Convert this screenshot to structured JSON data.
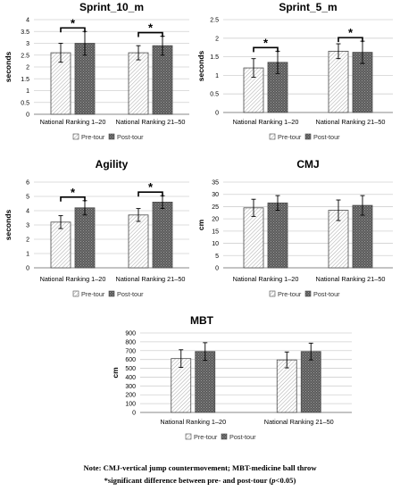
{
  "chart_data": [
    {
      "type": "bar",
      "title": "Sprint_10_m",
      "ylabel": "seconds",
      "xlabel": "",
      "ylim": [
        0,
        4
      ],
      "yticks": [
        0,
        0.5,
        1,
        1.5,
        2,
        2.5,
        3,
        3.5,
        4
      ],
      "ytick_labels": [
        "0",
        "0.5",
        "1",
        "1.5",
        "2",
        "2.5",
        "3",
        "3.5",
        "4"
      ],
      "grid": true,
      "legend_position": "bottom",
      "categories": [
        "National Ranking 1–20",
        "National Ranking 21–50"
      ],
      "series": [
        {
          "name": "Pre-tour",
          "values": [
            2.6,
            2.6
          ],
          "errors": [
            0.4,
            0.3
          ]
        },
        {
          "name": "Post-tour",
          "values": [
            3.0,
            2.9
          ],
          "errors": [
            0.5,
            0.4
          ]
        }
      ],
      "significance": [
        true,
        true
      ],
      "significance_symbol": "*"
    },
    {
      "type": "bar",
      "title": "Sprint_5_m",
      "ylabel": "seconds",
      "xlabel": "",
      "ylim": [
        0,
        2.5
      ],
      "yticks": [
        0,
        0.5,
        1,
        1.5,
        2,
        2.5
      ],
      "ytick_labels": [
        "0",
        "0.5",
        "1",
        "1.5",
        "2",
        "2.5"
      ],
      "grid": true,
      "legend_position": "bottom",
      "categories": [
        "National Ranking 1–20",
        "National Ranking 21–50"
      ],
      "series": [
        {
          "name": "Pre-tour",
          "values": [
            1.2,
            1.65
          ],
          "errors": [
            0.25,
            0.2
          ]
        },
        {
          "name": "Post-tour",
          "values": [
            1.35,
            1.62
          ],
          "errors": [
            0.3,
            0.3
          ]
        }
      ],
      "significance": [
        true,
        true
      ],
      "significance_symbol": "*"
    },
    {
      "type": "bar",
      "title": "Agility",
      "ylabel": "seconds",
      "xlabel": "",
      "ylim": [
        0,
        6
      ],
      "yticks": [
        0,
        1,
        2,
        3,
        4,
        5,
        6
      ],
      "ytick_labels": [
        "0",
        "1",
        "2",
        "3",
        "4",
        "5",
        "6"
      ],
      "grid": true,
      "legend_position": "bottom",
      "categories": [
        "National Ranking 1–20",
        "National Ranking 21–50"
      ],
      "series": [
        {
          "name": "Pre-tour",
          "values": [
            3.2,
            3.7
          ],
          "errors": [
            0.45,
            0.45
          ]
        },
        {
          "name": "Post-tour",
          "values": [
            4.2,
            4.6
          ],
          "errors": [
            0.5,
            0.45
          ]
        }
      ],
      "significance": [
        true,
        true
      ],
      "significance_symbol": "*"
    },
    {
      "type": "bar",
      "title": "CMJ",
      "ylabel": "cm",
      "xlabel": "",
      "ylim": [
        0,
        35
      ],
      "yticks": [
        0,
        5,
        10,
        15,
        20,
        25,
        30,
        35
      ],
      "ytick_labels": [
        "0",
        "5",
        "10",
        "15",
        "20",
        "25",
        "30",
        "35"
      ],
      "grid": true,
      "legend_position": "bottom",
      "categories": [
        "National Ranking 1–20",
        "National Ranking 21–50"
      ],
      "series": [
        {
          "name": "Pre-tour",
          "values": [
            24.5,
            23.5
          ],
          "errors": [
            3.5,
            4.2
          ]
        },
        {
          "name": "Post-tour",
          "values": [
            26.5,
            25.5
          ],
          "errors": [
            3.0,
            4.0
          ]
        }
      ],
      "significance": [
        false,
        false
      ],
      "significance_symbol": "*"
    },
    {
      "type": "bar",
      "title": "MBT",
      "ylabel": "cm",
      "xlabel": "",
      "ylim": [
        0,
        900
      ],
      "yticks": [
        0,
        100,
        200,
        300,
        400,
        500,
        600,
        700,
        800,
        900
      ],
      "ytick_labels": [
        "0",
        "100",
        "200",
        "300",
        "400",
        "500",
        "600",
        "700",
        "800",
        "900"
      ],
      "grid": true,
      "legend_position": "bottom",
      "categories": [
        "National Ranking 1–20",
        "National Ranking 21–50"
      ],
      "series": [
        {
          "name": "Pre-tour",
          "values": [
            610,
            595
          ],
          "errors": [
            100,
            90
          ]
        },
        {
          "name": "Post-tour",
          "values": [
            690,
            690
          ],
          "errors": [
            100,
            95
          ]
        }
      ],
      "significance": [
        false,
        false
      ],
      "significance_symbol": "*"
    }
  ],
  "notes": {
    "line1": "Note: CMJ-vertical jump countermovement; MBT-medicine ball throw",
    "line2_prefix": "*significant difference between pre- and post-tour (",
    "line2_italic": "p",
    "line2_suffix": "<0.05)"
  }
}
